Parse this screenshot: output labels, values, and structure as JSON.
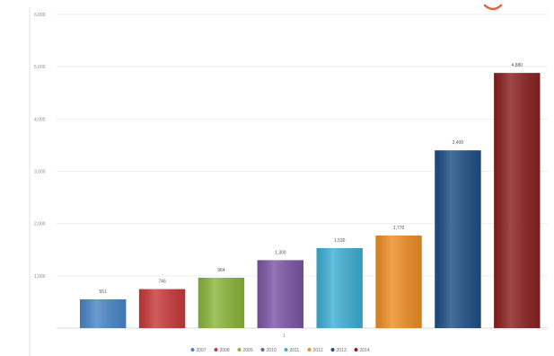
{
  "chart_data": {
    "type": "bar",
    "title": "",
    "xlabel": "",
    "ylabel": "",
    "x_axis_tick": "1",
    "categories": [
      "2007",
      "2008",
      "2009",
      "2010",
      "2011",
      "2012",
      "2013",
      "2014"
    ],
    "values": [
      551,
      746,
      964,
      1300,
      1530,
      1770,
      3400,
      4880
    ],
    "value_labels": [
      "551",
      "746",
      "964",
      "1,300",
      "1,530",
      "1,770",
      "3,400",
      "4,880"
    ],
    "ylim": [
      0,
      6000
    ],
    "yticks": [
      1000,
      2000,
      3000,
      4000,
      5000,
      6000
    ],
    "ytick_labels": [
      "1,000",
      "2,000",
      "3,000",
      "4,000",
      "5,000",
      "6,000"
    ],
    "colors": [
      "#4a86c8",
      "#c93a3a",
      "#8ab63c",
      "#7d56a6",
      "#3fb0d4",
      "#ef8f25",
      "#1f4f86",
      "#8a2020"
    ],
    "grid": true,
    "legend_position": "bottom"
  }
}
